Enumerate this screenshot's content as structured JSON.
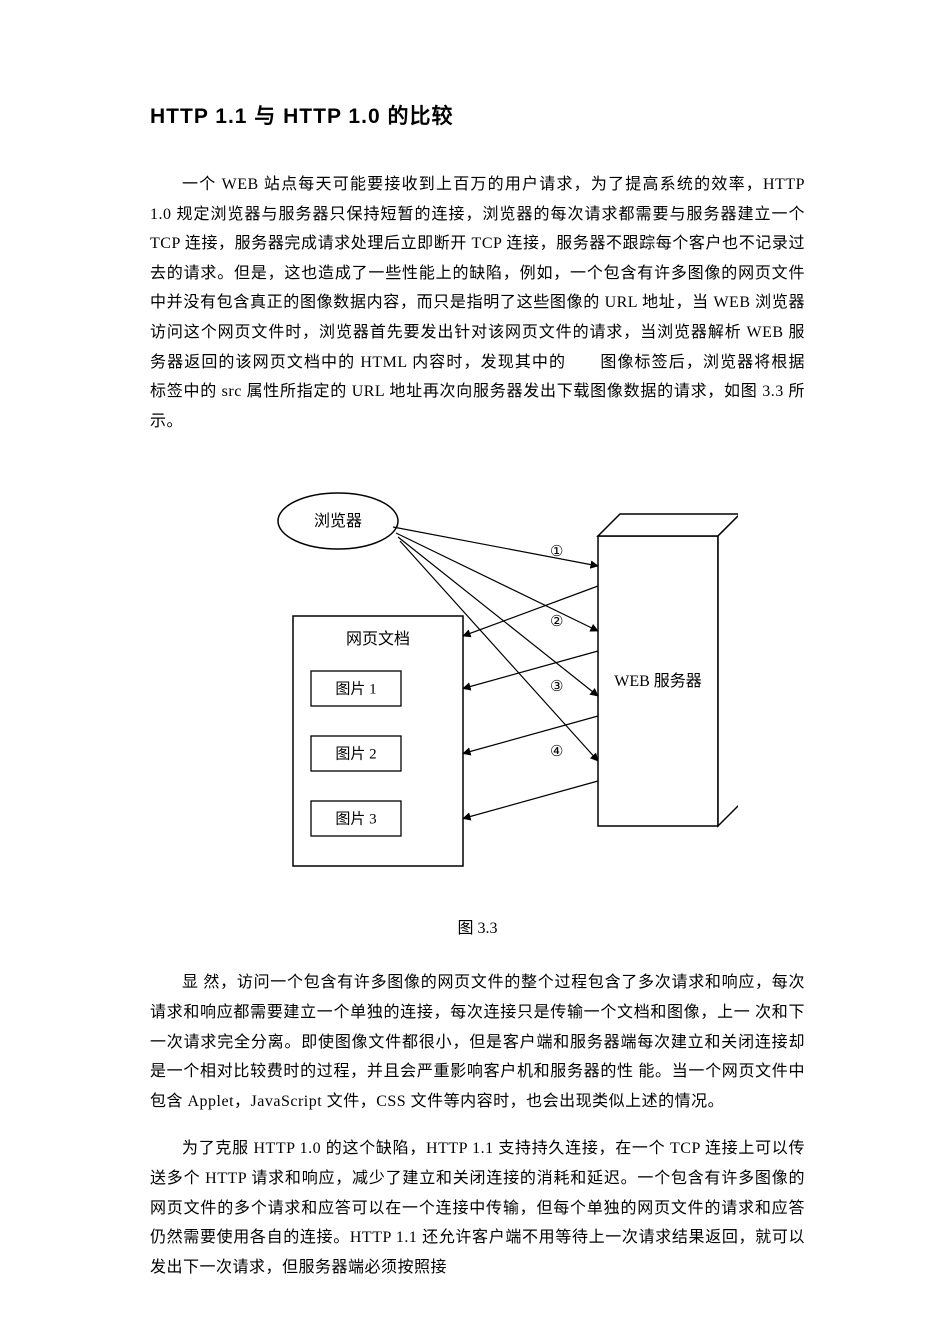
{
  "doc": {
    "title": "HTTP 1.1 与 HTTP 1.0 的比较",
    "p1": "一个 WEB 站点每天可能要接收到上百万的用户请求，为了提高系统的效率，HTTP 1.0 规定浏览器与服务器只保持短暂的连接，浏览器的每次请求都需要与服务器建立一个 TCP 连接，服务器完成请求处理后立即断开 TCP 连接，服务器不跟踪每个客户也不记录过去的请求。但是，这也造成了一些性能上的缺陷，例如，一个包含有许多图像的网页文件中并没有包含真正的图像数据内容，而只是指明了这些图像的 URL 地址，当 WEB 浏览器访问这个网页文件时，浏览器首先要发出针对该网页文件的请求，当浏览器解析 WEB 服务器返回的该网页文档中的 HTML 内容时，发现其中的　　图像标签后，浏览器将根据　　标签中的 src 属性所指定的 URL 地址再次向服务器发出下载图像数据的请求，如图 3.3 所示。",
    "figCaption": "图 3.3",
    "p2": "显 然，访问一个包含有许多图像的网页文件的整个过程包含了多次请求和响应，每次请求和响应都需要建立一个单独的连接，每次连接只是传输一个文档和图像，上一 次和下一次请求完全分离。即使图像文件都很小，但是客户端和服务器端每次建立和关闭连接却是一个相对比较费时的过程，并且会严重影响客户机和服务器的性 能。当一个网页文件中包含 Applet，JavaScript 文件，CSS 文件等内容时，也会出现类似上述的情况。",
    "p3": "为了克服 HTTP 1.0 的这个缺陷，HTTP 1.1 支持持久连接，在一个 TCP 连接上可以传送多个 HTTP 请求和响应，减少了建立和关闭连接的消耗和延迟。一个包含有许多图像的网页文件的多个请求和应答可以在一个连接中传输，但每个单独的网页文件的请求和应答仍然需要使用各自的连接。HTTP 1.1 还允许客户端不用等待上一次请求结果返回，就可以发出下一次请求，但服务器端必须按照接"
  },
  "diagram": {
    "browser": "浏览器",
    "docBox": "网页文档",
    "img1": "图片 1",
    "img2": "图片 2",
    "img3": "图片 3",
    "server": "WEB 服务器",
    "marks": [
      "①",
      "②",
      "③",
      "④"
    ],
    "stroke": "#000000",
    "fill": "#ffffff",
    "font": "16px SimSun, serif",
    "labelFont": "15px SimSun, serif"
  }
}
